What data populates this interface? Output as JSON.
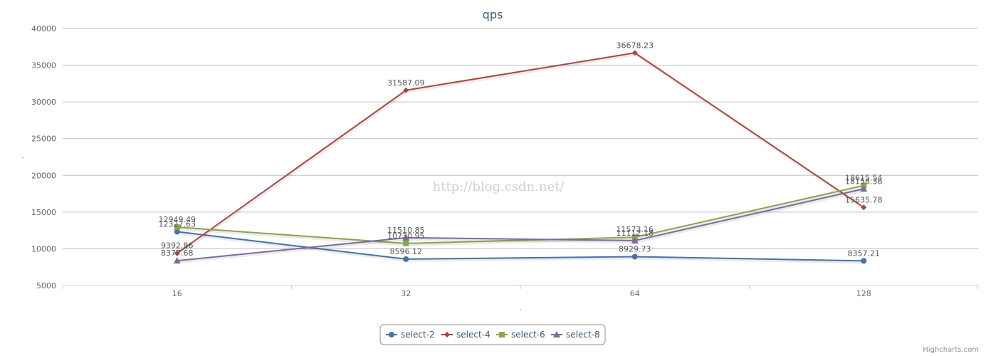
{
  "chart_data": {
    "type": "line",
    "title": "qps",
    "xlabel": ".",
    "ylabel": ".",
    "categories": [
      "16",
      "32",
      "64",
      "128"
    ],
    "ylim": [
      5000,
      40000
    ],
    "yticks": [
      5000,
      10000,
      15000,
      20000,
      25000,
      30000,
      35000,
      40000
    ],
    "grid": true,
    "legend_position": "bottom-center",
    "series": [
      {
        "name": "select-2",
        "color": "#4572a7",
        "marker": "circle",
        "values": [
          12327.63,
          8596.12,
          8929.73,
          8357.21
        ],
        "labels": [
          "12327.63",
          "8596.12",
          "8929.73",
          "8357.21"
        ]
      },
      {
        "name": "select-4",
        "color": "#aa4643",
        "marker": "diamond",
        "values": [
          9392.86,
          31587.09,
          36678.23,
          15635.78
        ],
        "labels": [
          "9392.86",
          "31587.09",
          "36678.23",
          "15635.78"
        ]
      },
      {
        "name": "select-6",
        "color": "#89a54e",
        "marker": "square",
        "values": [
          12949.49,
          10730.95,
          11573.16,
          18615.54
        ],
        "labels": [
          "12949.49",
          "10730.95",
          "11573.16",
          "18615.54"
        ]
      },
      {
        "name": "select-8",
        "color": "#80699b",
        "marker": "triangle",
        "values": [
          8377.68,
          11510.85,
          11112.18,
          18158.36
        ],
        "labels": [
          "8377.68",
          "11510.85",
          "11112.18",
          "18158.36"
        ]
      }
    ]
  },
  "watermark": "http://blog.csdn.net/",
  "credits": "Highcharts.com"
}
